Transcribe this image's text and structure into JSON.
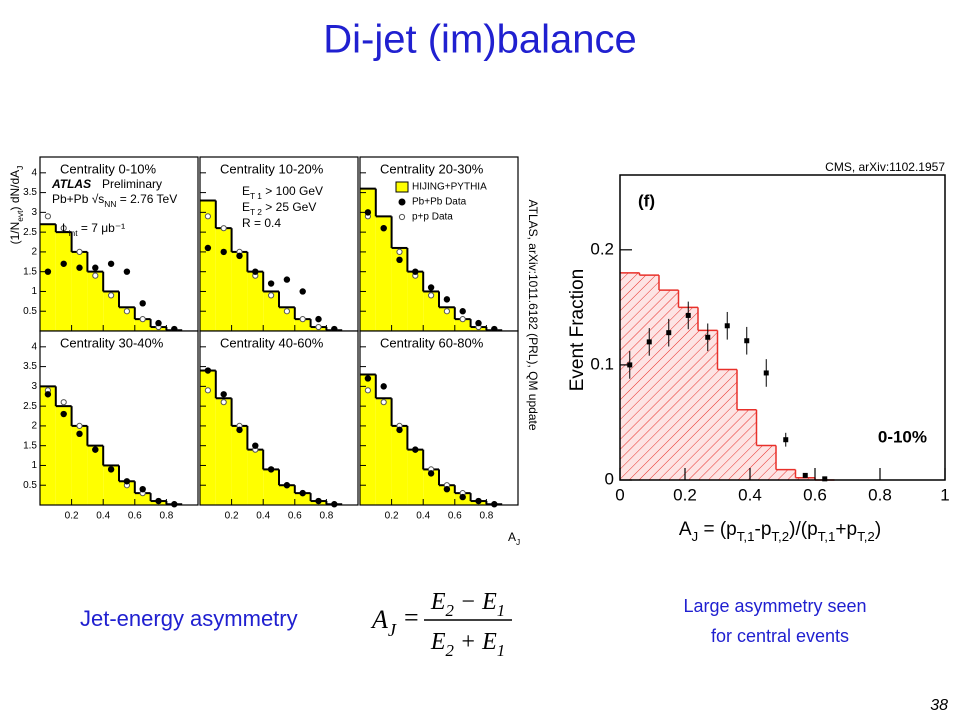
{
  "title": "Di-jet (im)balance",
  "atlas_citation": "ATLAS, arXiv:1011.6182 (PRL), QM update",
  "cms_citation": "CMS, arXiv:1102.1957",
  "formula_caption": "Jet-energy asymmetry",
  "formula": {
    "lhs": [
      "A",
      "J"
    ],
    "equals": "=",
    "numerator": [
      "E",
      "2",
      " − E",
      "1"
    ],
    "denominator": [
      "E",
      "2",
      " + E",
      "1"
    ]
  },
  "right_caption": [
    "Large asymmetry seen",
    "for central events"
  ],
  "page_number": "38",
  "chart_data": [
    {
      "type": "histogram",
      "ylabel": [
        "(1/N",
        "evt",
        ") dN/dA",
        "J"
      ],
      "xlabel": [
        "A",
        "J"
      ],
      "panels": [
        {
          "title": "Centrality 0-10%",
          "annotations": [
            [
              "ATLAS"
            ],
            [
              "Preliminary"
            ],
            [
              "Pb+Pb √s",
              "NN",
              " = 2.76 TeV"
            ],
            [
              "L",
              "int",
              " = 7 μb⁻¹"
            ]
          ]
        },
        {
          "title": "Centrality 10-20%",
          "annotations": [
            [
              "E",
              "T 1",
              " > 100 GeV"
            ],
            [
              "E",
              "T 2",
              " > 25 GeV"
            ],
            [
              "R = 0.4"
            ]
          ]
        },
        {
          "title": "Centrality 20-30%"
        },
        {
          "title": "Centrality 30-40%"
        },
        {
          "title": "Centrality 40-60%"
        },
        {
          "title": "Centrality 60-80%"
        }
      ],
      "bins": [
        0,
        0.1,
        0.2,
        0.3,
        0.4,
        0.5,
        0.6,
        0.7,
        0.8,
        0.9
      ],
      "xlim": [
        0,
        1
      ],
      "ylim": [
        0,
        4.4
      ],
      "xticks": [
        0.2,
        0.4,
        0.6,
        0.8
      ],
      "yticks": [
        0.5,
        1,
        1.5,
        2,
        2.5,
        3,
        3.5,
        4
      ],
      "series": [
        {
          "name": "HIJING+PYTHIA",
          "color": "#ffff00",
          "values": [
            [
              2.7,
              2.5,
              2.0,
              1.5,
              1.0,
              0.6,
              0.3,
              0.1,
              0.02
            ],
            [
              3.3,
              2.6,
              2.0,
              1.5,
              1.0,
              0.6,
              0.3,
              0.1,
              0.02
            ],
            [
              3.6,
              2.9,
              2.1,
              1.5,
              1.0,
              0.6,
              0.3,
              0.1,
              0.02
            ],
            [
              3.0,
              2.5,
              2.0,
              1.5,
              1.0,
              0.6,
              0.3,
              0.1,
              0.02
            ],
            [
              3.4,
              2.7,
              2.0,
              1.4,
              0.9,
              0.5,
              0.3,
              0.1,
              0.02
            ],
            [
              3.3,
              2.7,
              2.0,
              1.4,
              0.9,
              0.5,
              0.3,
              0.1,
              0.02
            ]
          ]
        },
        {
          "name": "Pb+Pb Data",
          "color": "#000000",
          "values": [
            [
              1.5,
              1.7,
              1.6,
              1.6,
              1.7,
              1.5,
              0.7,
              0.2,
              0.05
            ],
            [
              2.1,
              2.0,
              1.9,
              1.5,
              1.2,
              1.3,
              1.0,
              0.3,
              0.05
            ],
            [
              3.0,
              2.6,
              1.8,
              1.5,
              1.1,
              0.8,
              0.5,
              0.2,
              0.05
            ],
            [
              2.8,
              2.3,
              1.8,
              1.4,
              0.9,
              0.6,
              0.4,
              0.1,
              0.02
            ],
            [
              3.4,
              2.8,
              1.9,
              1.5,
              0.9,
              0.5,
              0.3,
              0.1,
              0.02
            ],
            [
              3.2,
              3.0,
              1.9,
              1.4,
              0.8,
              0.4,
              0.2,
              0.1,
              0.02
            ]
          ]
        },
        {
          "name": "p+p Data",
          "color": "#555555",
          "values": [
            [
              2.9,
              2.6,
              2.0,
              1.4,
              0.9,
              0.5,
              0.3,
              0.1,
              0.02
            ],
            [
              2.9,
              2.6,
              2.0,
              1.4,
              0.9,
              0.5,
              0.3,
              0.1,
              0.02
            ],
            [
              2.9,
              2.6,
              2.0,
              1.4,
              0.9,
              0.5,
              0.3,
              0.1,
              0.02
            ],
            [
              2.9,
              2.6,
              2.0,
              1.4,
              0.9,
              0.5,
              0.3,
              0.1,
              0.02
            ],
            [
              2.9,
              2.6,
              2.0,
              1.4,
              0.9,
              0.5,
              0.3,
              0.1,
              0.02
            ],
            [
              2.9,
              2.6,
              2.0,
              1.4,
              0.9,
              0.5,
              0.3,
              0.1,
              0.02
            ]
          ]
        }
      ]
    },
    {
      "type": "histogram",
      "tag": "(f)",
      "annotation": "0-10%",
      "ylabel": "Event Fraction",
      "xlabel": [
        "A",
        "J",
        " = (p",
        "T,1",
        "-p",
        "T,2",
        ")/(p",
        "T,1",
        "+p",
        "T,2",
        ")"
      ],
      "xlim": [
        0,
        1
      ],
      "ylim": [
        0,
        0.265
      ],
      "xticks": [
        0,
        0.2,
        0.4,
        0.6,
        0.8,
        1
      ],
      "yticks": [
        0,
        0.1,
        0.2
      ],
      "bins": [
        0,
        0.06,
        0.12,
        0.18,
        0.24,
        0.3,
        0.36,
        0.42,
        0.48,
        0.54,
        0.6,
        0.66
      ],
      "histogram": {
        "color": "#e8302a",
        "values": [
          0.18,
          0.178,
          0.165,
          0.15,
          0.13,
          0.096,
          0.061,
          0.03,
          0.009,
          0.002,
          0
        ]
      },
      "points": {
        "color": "#000000",
        "x": [
          0.03,
          0.09,
          0.15,
          0.21,
          0.27,
          0.33,
          0.39,
          0.45,
          0.51,
          0.57,
          0.63
        ],
        "values": [
          0.1,
          0.12,
          0.128,
          0.143,
          0.124,
          0.134,
          0.121,
          0.093,
          0.035,
          0.004,
          0.001
        ],
        "errors": [
          0.012,
          0.012,
          0.012,
          0.012,
          0.012,
          0.012,
          0.012,
          0.012,
          0.006,
          0.002,
          0.001
        ]
      }
    }
  ]
}
